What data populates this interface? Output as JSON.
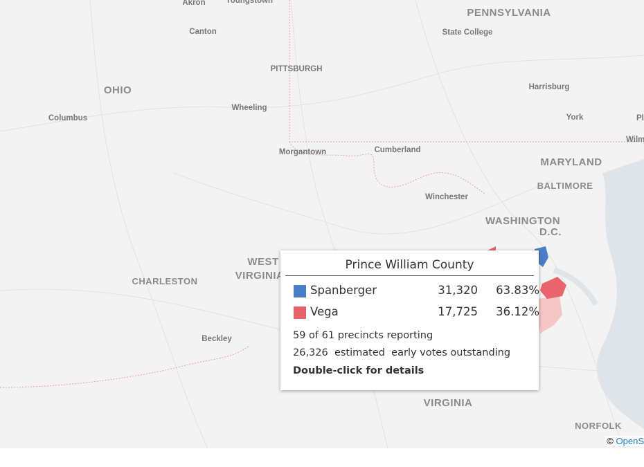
{
  "map": {
    "labels": [
      "Akron",
      "Youngstown",
      "Canton",
      "PENNSYLVANIA",
      "State College",
      "PITTSBURGH",
      "OHIO",
      "Harrisburg",
      "Wheeling",
      "Columbus",
      "York",
      "Pl",
      "Wilm",
      "Morgantown",
      "Cumberland",
      "MARYLAND",
      "BALTIMORE",
      "Winchester",
      "WASHINGTON",
      "D.C.",
      "WEST",
      "VIRGINIA",
      "CHARLESTON",
      "Beckley",
      "VIRGINIA",
      "NORFOLK"
    ],
    "attribution": {
      "symbol": "©",
      "link": "OpenS"
    }
  },
  "tooltip": {
    "title": "Prince William County",
    "rows": [
      {
        "name": "Spanberger",
        "color": "#4b7ec6",
        "votes": "31,320",
        "percent": "63.83%"
      },
      {
        "name": "Vega",
        "color": "#e8646d",
        "votes": "17,725",
        "percent": "36.12%"
      }
    ],
    "precincts": "59 of 61 precincts reporting",
    "outstanding": "26,326  estimated  early votes outstanding",
    "hint": "Double-click for details"
  }
}
